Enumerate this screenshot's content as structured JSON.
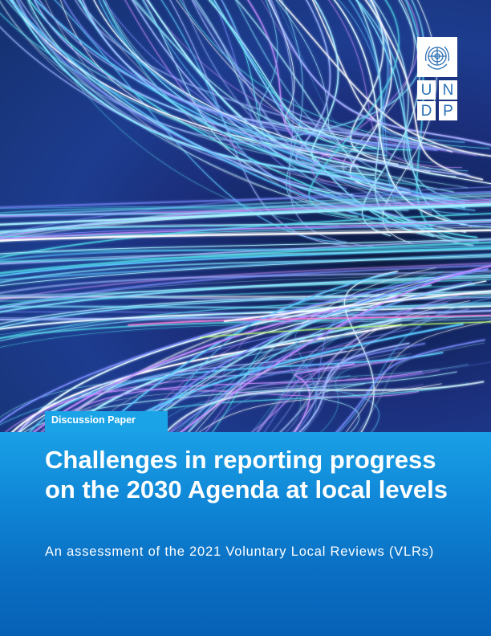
{
  "brand": {
    "logo_letters": [
      "U",
      "N",
      "D",
      "P"
    ],
    "colors": {
      "panel_blue": "#0a6ec2",
      "tag_blue": "#1ba3e8",
      "logo_blue": "#2a6fb5"
    }
  },
  "cover": {
    "tag": "Discussion Paper",
    "title": "Challenges in reporting progress on the 2030 Agenda at local levels",
    "subtitle": "An assessment of the 2021 Voluntary Local Reviews (VLRs)"
  },
  "hero": {
    "image": "light-trails-tunnel"
  }
}
